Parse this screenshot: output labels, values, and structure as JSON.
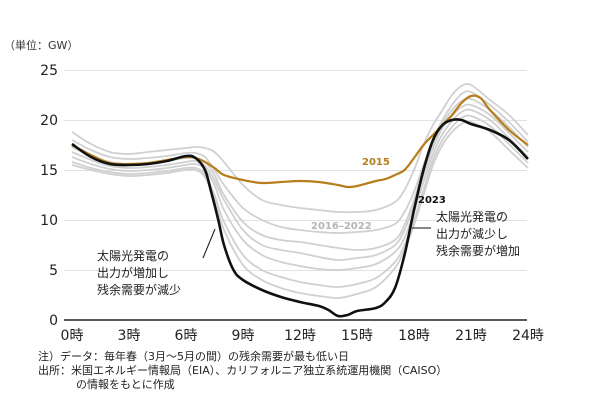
{
  "chart_data": {
    "type": "line",
    "unit_label": "（単位：GW）",
    "y_ticks": [
      "0",
      "5",
      "10",
      "15",
      "20",
      "25"
    ],
    "x_ticks": [
      "0時",
      "3時",
      "6時",
      "9時",
      "12時",
      "15時",
      "18時",
      "21時",
      "24時"
    ],
    "ylim": [
      0,
      25
    ],
    "xlim": [
      0,
      24
    ],
    "grid": "horizontal",
    "series": [
      {
        "name": "2015",
        "color": "#b67d1a",
        "x": [
          0,
          1,
          2,
          3,
          4,
          5,
          6,
          6.5,
          7,
          7.5,
          8,
          9,
          10,
          11,
          12,
          13,
          14,
          14.5,
          15,
          16,
          16.5,
          17,
          17.5,
          18,
          18.5,
          19,
          19.5,
          20,
          20.5,
          21,
          21.5,
          22,
          23,
          24
        ],
        "y": [
          17.5,
          16.5,
          15.7,
          15.6,
          15.7,
          16.0,
          16.3,
          16.2,
          15.8,
          15.2,
          14.5,
          14.0,
          13.7,
          13.8,
          13.9,
          13.8,
          13.5,
          13.3,
          13.4,
          13.9,
          14.1,
          14.5,
          15.0,
          16.2,
          17.5,
          18.5,
          19.5,
          20.5,
          21.7,
          22.4,
          22.2,
          21.0,
          19.0,
          17.5
        ]
      },
      {
        "name": "2023",
        "color": "#111111",
        "x": [
          0,
          1,
          2,
          3,
          4,
          5,
          6,
          6.5,
          7,
          7.3,
          7.7,
          8,
          8.5,
          9,
          10,
          11,
          12,
          13,
          13.5,
          14,
          14.5,
          15,
          16,
          16.5,
          17,
          17.5,
          18,
          18.5,
          19,
          19.5,
          20,
          20.5,
          21,
          22,
          23,
          24
        ],
        "y": [
          17.6,
          16.3,
          15.6,
          15.5,
          15.6,
          15.9,
          16.4,
          16.2,
          15.0,
          13.0,
          10.0,
          7.5,
          5.0,
          4.0,
          3.0,
          2.3,
          1.8,
          1.4,
          1.0,
          0.4,
          0.5,
          0.9,
          1.2,
          1.8,
          3.2,
          6.5,
          11.0,
          15.0,
          18.0,
          19.5,
          20.0,
          20.0,
          19.6,
          19.0,
          18.0,
          16.1
        ]
      }
    ],
    "band": {
      "name": "2016–2022",
      "color": "#d0d0d0",
      "x": [
        0,
        1,
        2,
        3,
        4,
        5,
        6,
        6.5,
        7,
        7.5,
        8,
        9,
        10,
        11,
        12,
        13,
        14,
        15,
        16,
        17,
        17.5,
        18,
        18.5,
        19,
        19.5,
        20,
        20.5,
        21,
        22,
        23,
        24
      ],
      "lines": [
        [
          18.8,
          17.6,
          16.8,
          16.6,
          16.8,
          17.0,
          17.2,
          17.3,
          17.2,
          16.8,
          15.8,
          13.5,
          12.0,
          11.5,
          11.2,
          11.0,
          10.8,
          10.8,
          11.0,
          11.8,
          13.0,
          15.0,
          17.5,
          19.5,
          21.0,
          22.5,
          23.4,
          23.5,
          22.0,
          20.5,
          18.5
        ],
        [
          18.0,
          17.0,
          16.3,
          16.1,
          16.2,
          16.4,
          16.7,
          16.7,
          16.3,
          15.0,
          13.5,
          11.2,
          10.0,
          9.3,
          9.0,
          8.8,
          8.7,
          8.8,
          9.0,
          9.6,
          10.8,
          12.8,
          15.5,
          18.0,
          20.0,
          21.5,
          22.6,
          22.8,
          21.5,
          19.8,
          17.8
        ],
        [
          17.3,
          16.4,
          15.8,
          15.6,
          15.7,
          15.9,
          16.2,
          16.2,
          15.8,
          14.5,
          12.5,
          9.8,
          8.5,
          8.0,
          7.8,
          7.5,
          7.2,
          7.0,
          7.2,
          8.0,
          9.5,
          12.0,
          15.0,
          17.6,
          19.6,
          21.0,
          21.9,
          22.1,
          21.0,
          19.3,
          17.3
        ],
        [
          16.8,
          16.0,
          15.4,
          15.2,
          15.3,
          15.5,
          15.8,
          15.9,
          15.4,
          14.0,
          12.0,
          9.0,
          7.5,
          7.0,
          6.7,
          6.3,
          6.0,
          6.2,
          6.5,
          7.5,
          9.0,
          11.5,
          14.5,
          17.2,
          19.2,
          20.4,
          21.3,
          21.5,
          20.5,
          18.7,
          16.8
        ],
        [
          16.3,
          15.6,
          15.1,
          14.9,
          15.0,
          15.2,
          15.5,
          15.6,
          15.1,
          13.5,
          11.0,
          8.0,
          6.5,
          5.8,
          5.4,
          5.1,
          5.0,
          5.2,
          5.6,
          6.8,
          8.2,
          10.8,
          13.8,
          16.6,
          18.6,
          19.9,
          20.8,
          21.0,
          20.0,
          18.2,
          16.3
        ],
        [
          15.8,
          15.2,
          14.8,
          14.6,
          14.7,
          14.9,
          15.2,
          15.2,
          14.6,
          12.5,
          9.8,
          6.5,
          5.0,
          4.3,
          3.8,
          3.5,
          3.3,
          3.6,
          4.2,
          5.8,
          7.5,
          10.0,
          13.0,
          16.0,
          18.0,
          19.3,
          20.2,
          20.4,
          19.4,
          17.6,
          15.7
        ],
        [
          15.5,
          15.0,
          14.6,
          14.4,
          14.5,
          14.7,
          15.0,
          15.0,
          14.3,
          12.0,
          9.0,
          5.5,
          4.0,
          3.2,
          2.7,
          2.4,
          2.2,
          2.6,
          3.3,
          5.2,
          7.0,
          9.5,
          12.5,
          15.5,
          17.5,
          18.8,
          19.6,
          19.8,
          18.8,
          17.0,
          15.2
        ]
      ]
    },
    "series_labels": {
      "s2015": "2015",
      "s2023": "2023",
      "band": "2016–2022"
    },
    "annotations": {
      "right": [
        "太陽光発電の",
        "出力が減少し",
        "残余需要が増加"
      ],
      "left": [
        "太陽光発電の",
        "出力が増加し",
        "残余需要が減少"
      ]
    }
  },
  "notes": {
    "note": "注）データ：毎年春（3月～5月の間）の残余需要が最も低い日",
    "source_line1": "出所：米国エネルギー情報局（EIA）、カリフォルニア独立系統運用機関（CAISO）",
    "source_line2": "の情報をもとに作成"
  }
}
